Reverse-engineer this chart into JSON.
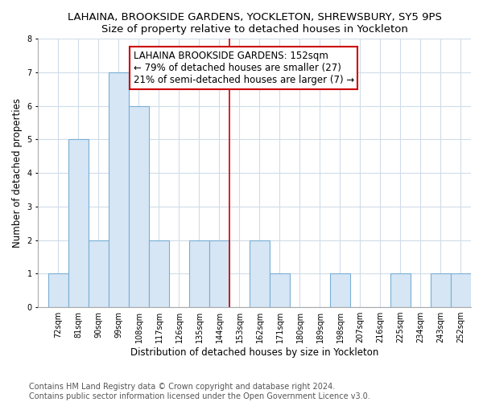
{
  "title": "LAHAINA, BROOKSIDE GARDENS, YOCKLETON, SHREWSBURY, SY5 9PS",
  "subtitle": "Size of property relative to detached houses in Yockleton",
  "xlabel": "Distribution of detached houses by size in Yockleton",
  "ylabel": "Number of detached properties",
  "bin_labels": [
    "72sqm",
    "81sqm",
    "90sqm",
    "99sqm",
    "108sqm",
    "117sqm",
    "126sqm",
    "135sqm",
    "144sqm",
    "153sqm",
    "162sqm",
    "171sqm",
    "180sqm",
    "189sqm",
    "198sqm",
    "207sqm",
    "216sqm",
    "225sqm",
    "234sqm",
    "243sqm",
    "252sqm"
  ],
  "bin_left_edges": [
    72,
    81,
    90,
    99,
    108,
    117,
    126,
    135,
    144,
    153,
    162,
    171,
    180,
    189,
    198,
    207,
    216,
    225,
    234,
    243,
    252
  ],
  "counts": [
    1,
    5,
    2,
    7,
    6,
    2,
    0,
    2,
    2,
    0,
    2,
    1,
    0,
    0,
    1,
    0,
    0,
    1,
    0,
    1,
    1
  ],
  "bar_facecolor": "#d6e6f5",
  "bar_edgecolor": "#7aafd4",
  "redline_x": 153,
  "redline_color": "#cc0000",
  "annotation_line1": "LAHAINA BROOKSIDE GARDENS: 152sqm",
  "annotation_line2": "← 79% of detached houses are smaller (27)",
  "annotation_line3": "21% of semi-detached houses are larger (7) →",
  "annotation_edgecolor": "#cc0000",
  "annotation_fontsize": 8.5,
  "ylim": [
    0,
    8
  ],
  "yticks": [
    0,
    1,
    2,
    3,
    4,
    5,
    6,
    7,
    8
  ],
  "xlim_left": 67.5,
  "xlim_right": 261,
  "bin_width": 9,
  "title_fontsize": 9.5,
  "subtitle_fontsize": 9,
  "xlabel_fontsize": 8.5,
  "ylabel_fontsize": 8.5,
  "tick_fontsize": 7,
  "footer": "Contains HM Land Registry data © Crown copyright and database right 2024.\nContains public sector information licensed under the Open Government Licence v3.0.",
  "footer_fontsize": 7,
  "grid_color": "#d0dce8",
  "background_color": "#ffffff"
}
